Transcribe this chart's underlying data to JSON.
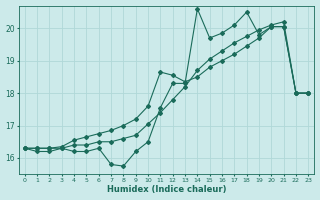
{
  "xlabel": "Humidex (Indice chaleur)",
  "bg_color": "#cceaea",
  "grid_color": "#b0d8d8",
  "line_color": "#1a6b5a",
  "xlim": [
    -0.5,
    23.5
  ],
  "ylim": [
    15.5,
    20.7
  ],
  "xticks": [
    0,
    1,
    2,
    3,
    4,
    5,
    6,
    7,
    8,
    9,
    10,
    11,
    12,
    13,
    14,
    15,
    16,
    17,
    18,
    19,
    20,
    21,
    22,
    23
  ],
  "yticks": [
    16,
    17,
    18,
    19,
    20
  ],
  "series1_x": [
    0,
    1,
    2,
    3,
    4,
    5,
    6,
    7,
    8,
    9,
    10,
    11,
    12,
    13,
    14,
    15,
    16,
    17,
    18,
    19,
    20,
    21,
    22,
    23
  ],
  "series1_y": [
    16.3,
    16.2,
    16.2,
    16.3,
    16.2,
    16.2,
    16.3,
    15.8,
    15.75,
    16.2,
    16.5,
    17.55,
    18.3,
    18.3,
    20.6,
    19.7,
    19.85,
    20.1,
    20.5,
    19.8,
    20.05,
    20.05,
    18.0,
    18.0
  ],
  "series2_x": [
    0,
    1,
    2,
    3,
    4,
    5,
    6,
    7,
    8,
    9,
    10,
    11,
    12,
    13,
    14,
    15,
    16,
    17,
    18,
    19,
    20,
    21,
    22,
    23
  ],
  "series2_y": [
    16.3,
    16.3,
    16.3,
    16.3,
    16.4,
    16.4,
    16.5,
    16.5,
    16.6,
    16.7,
    17.05,
    17.4,
    17.8,
    18.2,
    18.7,
    19.05,
    19.3,
    19.55,
    19.75,
    19.95,
    20.1,
    20.2,
    18.0,
    18.0
  ],
  "series3_x": [
    0,
    1,
    2,
    3,
    4,
    5,
    6,
    7,
    8,
    9,
    10,
    11,
    12,
    13,
    14,
    15,
    16,
    17,
    18,
    19,
    20,
    21,
    22,
    23
  ],
  "series3_y": [
    16.3,
    16.3,
    16.3,
    16.35,
    16.55,
    16.65,
    16.75,
    16.85,
    17.0,
    17.2,
    17.6,
    18.65,
    18.55,
    18.35,
    18.5,
    18.8,
    19.0,
    19.2,
    19.45,
    19.7,
    20.05,
    20.05,
    18.0,
    18.0
  ]
}
